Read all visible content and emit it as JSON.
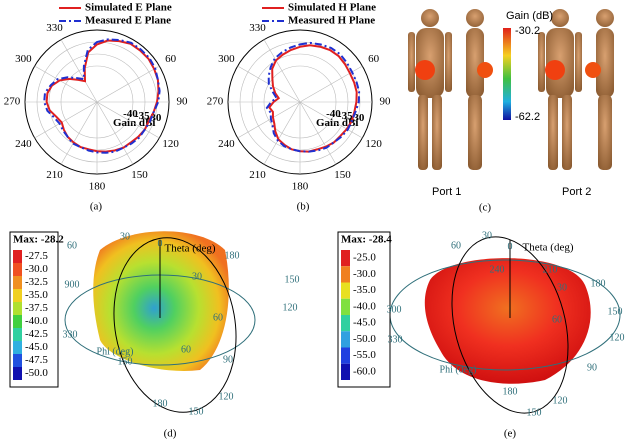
{
  "chart_data": [
    {
      "type": "polar_line",
      "theta": [
        0,
        10,
        20,
        30,
        40,
        50,
        60,
        70,
        80,
        90,
        100,
        110,
        120,
        130,
        140,
        150,
        160,
        170,
        180,
        190,
        200,
        210,
        220,
        230,
        240,
        250,
        260,
        270,
        280,
        290,
        300,
        310,
        320,
        330,
        340,
        350
      ],
      "series": [
        {
          "name": "Simulated E Plane",
          "color": "#e02020",
          "dash": false,
          "values": [
            -31,
            -29,
            -28,
            -27,
            -27,
            -27,
            -27.5,
            -28,
            -29,
            -30,
            -31,
            -32,
            -32,
            -32.5,
            -33,
            -33,
            -33.5,
            -34,
            -34.5,
            -35,
            -35,
            -35.5,
            -36,
            -37,
            -38,
            -37,
            -35,
            -34,
            -34,
            -35,
            -37,
            -40,
            -43,
            -45,
            -40,
            -34
          ]
        },
        {
          "name": "Measured E Plane",
          "color": "#2030d0",
          "dash": true,
          "values": [
            -30,
            -28.5,
            -27.5,
            -26.5,
            -26.5,
            -26.5,
            -27,
            -28,
            -28.5,
            -29.5,
            -31,
            -31.5,
            -32,
            -32,
            -32.5,
            -33,
            -33,
            -33.5,
            -34,
            -34.5,
            -35,
            -35,
            -36,
            -36.5,
            -37,
            -36,
            -34,
            -33,
            -33,
            -34.5,
            -36,
            -39,
            -42,
            -44,
            -39,
            -33
          ]
        }
      ],
      "thetaticks": [
        60,
        90,
        120,
        150,
        180,
        210,
        240,
        270,
        300,
        330
      ],
      "rlim": [
        -55,
        -25
      ],
      "rticks": [
        -40,
        -35,
        -30
      ],
      "r_label": "Gain dBi",
      "panel": "(a)"
    },
    {
      "type": "polar_line",
      "theta": [
        0,
        10,
        20,
        30,
        40,
        50,
        60,
        70,
        80,
        90,
        100,
        110,
        120,
        130,
        140,
        150,
        160,
        170,
        180,
        190,
        200,
        210,
        220,
        230,
        240,
        250,
        260,
        270,
        280,
        290,
        300,
        310,
        320,
        330,
        340,
        350
      ],
      "series": [
        {
          "name": "Simulated H Plane",
          "color": "#e02020",
          "dash": false,
          "values": [
            -32,
            -31,
            -30.5,
            -30,
            -30,
            -30.5,
            -31,
            -31,
            -31,
            -31.5,
            -32,
            -32,
            -32.5,
            -33,
            -33,
            -33.5,
            -34,
            -34,
            -34.5,
            -35,
            -36,
            -37,
            -39,
            -41,
            -42,
            -43,
            -42,
            -44,
            -46,
            -44,
            -42,
            -40,
            -37,
            -35,
            -34,
            -33
          ]
        },
        {
          "name": "Measured H Plane",
          "color": "#2030d0",
          "dash": true,
          "values": [
            -31,
            -30,
            -29.5,
            -29,
            -29,
            -29.5,
            -30,
            -30,
            -30,
            -30.5,
            -31.5,
            -32,
            -32,
            -32.5,
            -33,
            -33,
            -33.5,
            -34,
            -34.5,
            -35,
            -35.5,
            -36.5,
            -38,
            -40,
            -41,
            -42,
            -41,
            -43,
            -45,
            -43,
            -40,
            -38,
            -36,
            -34,
            -33,
            -32
          ]
        }
      ],
      "thetaticks": [
        60,
        90,
        120,
        150,
        180,
        210,
        240,
        270,
        300,
        330
      ],
      "rlim": [
        -55,
        -25
      ],
      "rticks": [
        -40,
        -35,
        -30
      ],
      "r_label": "Gain dBi",
      "panel": "(b)"
    }
  ],
  "figure": {
    "panel_labels": [
      "(a)",
      "(b)",
      "(c)",
      "(d)",
      "(e)"
    ],
    "panel_c": {
      "colorbar_title": "Gain (dB)",
      "colorbar_max": "-30.2",
      "colorbar_min": "-62.2",
      "ports": [
        "Port 1",
        "Port 2"
      ]
    },
    "panel_d": {
      "max": "Max: -28.2",
      "scale": [
        "-27.5",
        "-30.0",
        "-32.5",
        "-35.0",
        "-37.5",
        "-40.0",
        "-42.5",
        "-45.0",
        "-47.5",
        "-50.0"
      ],
      "axis_labels": [
        "30",
        "0",
        "Theta (deg)",
        "30",
        "180",
        "60",
        "150",
        "120",
        "900",
        "330",
        "Phi (deg)",
        "150",
        "60",
        "90",
        "180",
        "150",
        "120",
        "60"
      ]
    },
    "panel_e": {
      "max": "Max: -28.4",
      "scale": [
        "-25.0",
        "-30.0",
        "-35.0",
        "-40.0",
        "-45.0",
        "-50.0",
        "-55.0",
        "-60.0"
      ],
      "axis_labels": [
        "30",
        "0",
        "Theta (deg)",
        "60",
        "240",
        "210",
        "30",
        "180",
        "150",
        "300",
        "60",
        "120",
        "330",
        "Phi (deg)",
        "90",
        "180",
        "120",
        "150"
      ]
    }
  }
}
